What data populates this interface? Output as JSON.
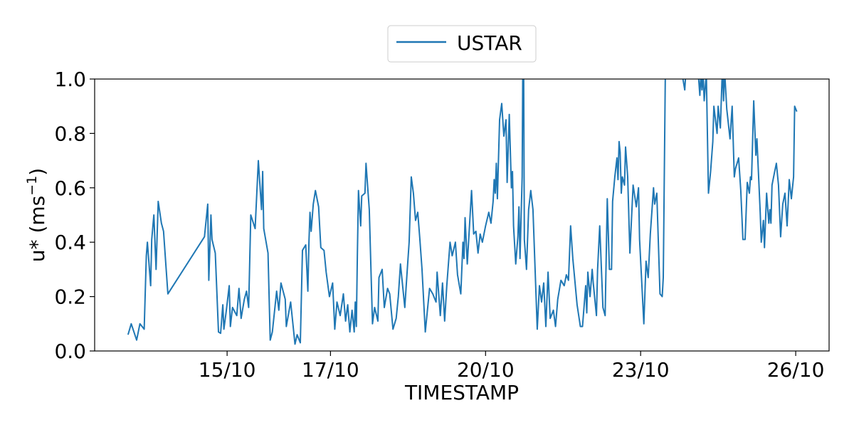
{
  "chart_data": {
    "type": "line",
    "title": "",
    "xlabel": "TIMESTAMP",
    "ylabel": "u* (ms",
    "ylabel_exponent": "−1",
    "ylabel_close": ")",
    "ylim": [
      0,
      1
    ],
    "xlim": [
      "12/10 10:30",
      "26/10 15:30"
    ],
    "yticks": [
      "0.0",
      "0.2",
      "0.4",
      "0.6",
      "0.8",
      "1.0"
    ],
    "xticks": [
      "15/10",
      "17/10",
      "20/10",
      "23/10",
      "26/10"
    ],
    "grid": false,
    "legend_placement": "top-center, outside",
    "series": [
      {
        "name": "USTAR",
        "color": "#1f77b4",
        "points": [
          [
            "13/10 02:00",
            0.06
          ],
          [
            "13/10 03:30",
            0.1
          ],
          [
            "13/10 06:00",
            0.04
          ],
          [
            "13/10 07:30",
            0.1
          ],
          [
            "13/10 09:30",
            0.08
          ],
          [
            "13/10 10:30",
            0.35
          ],
          [
            "13/10 11:00",
            0.4
          ],
          [
            "13/10 12:30",
            0.24
          ],
          [
            "13/10 13:00",
            0.41
          ],
          [
            "13/10 14:00",
            0.5
          ],
          [
            "13/10 15:00",
            0.3
          ],
          [
            "13/10 16:00",
            0.55
          ],
          [
            "13/10 17:30",
            0.47
          ],
          [
            "13/10 18:30",
            0.44
          ],
          [
            "13/10 20:30",
            0.21
          ],
          [
            "14/10 13:30",
            0.42
          ],
          [
            "14/10 15:00",
            0.54
          ],
          [
            "14/10 15:30",
            0.26
          ],
          [
            "14/10 16:30",
            0.5
          ],
          [
            "14/10 17:00",
            0.41
          ],
          [
            "14/10 18:30",
            0.36
          ],
          [
            "14/10 20:00",
            0.07
          ],
          [
            "14/10 21:00",
            0.065
          ],
          [
            "14/10 22:00",
            0.17
          ],
          [
            "14/10 22:30",
            0.08
          ],
          [
            "14/10 23:30",
            0.14
          ],
          [
            "15/10 01:00",
            0.24
          ],
          [
            "15/10 01:30",
            0.09
          ],
          [
            "15/10 02:30",
            0.16
          ],
          [
            "15/10 04:30",
            0.13
          ],
          [
            "15/10 05:30",
            0.23
          ],
          [
            "15/10 06:30",
            0.12
          ],
          [
            "15/10 08:00",
            0.19
          ],
          [
            "15/10 09:00",
            0.22
          ],
          [
            "15/10 10:00",
            0.16
          ],
          [
            "15/10 11:00",
            0.5
          ],
          [
            "15/10 13:00",
            0.45
          ],
          [
            "15/10 14:30",
            0.7
          ],
          [
            "15/10 16:00",
            0.52
          ],
          [
            "15/10 16:30",
            0.66
          ],
          [
            "15/10 17:00",
            0.45
          ],
          [
            "15/10 19:00",
            0.36
          ],
          [
            "15/10 20:00",
            0.04
          ],
          [
            "15/10 21:00",
            0.07
          ],
          [
            "15/10 23:00",
            0.22
          ],
          [
            "16/10 00:00",
            0.15
          ],
          [
            "16/10 01:00",
            0.25
          ],
          [
            "16/10 03:00",
            0.19
          ],
          [
            "16/10 03:30",
            0.09
          ],
          [
            "16/10 05:30",
            0.18
          ],
          [
            "16/10 07:30",
            0.025
          ],
          [
            "16/10 08:30",
            0.06
          ],
          [
            "16/10 10:00",
            0.03
          ],
          [
            "16/10 11:00",
            0.37
          ],
          [
            "16/10 12:30",
            0.39
          ],
          [
            "16/10 13:30",
            0.22
          ],
          [
            "16/10 14:00",
            0.4
          ],
          [
            "16/10 14:30",
            0.51
          ],
          [
            "16/10 15:00",
            0.44
          ],
          [
            "16/10 16:00",
            0.54
          ],
          [
            "16/10 17:00",
            0.59
          ],
          [
            "16/10 18:30",
            0.53
          ],
          [
            "16/10 19:30",
            0.38
          ],
          [
            "16/10 21:00",
            0.37
          ],
          [
            "16/10 22:00",
            0.29
          ],
          [
            "16/10 23:30",
            0.2
          ],
          [
            "17/10 01:00",
            0.25
          ],
          [
            "17/10 02:00",
            0.08
          ],
          [
            "17/10 03:00",
            0.18
          ],
          [
            "17/10 04:30",
            0.13
          ],
          [
            "17/10 06:00",
            0.21
          ],
          [
            "17/10 07:00",
            0.11
          ],
          [
            "17/10 08:00",
            0.17
          ],
          [
            "17/10 09:00",
            0.07
          ],
          [
            "17/10 10:00",
            0.15
          ],
          [
            "17/10 11:00",
            0.07
          ],
          [
            "17/10 11:30",
            0.18
          ],
          [
            "17/10 12:00",
            0.09
          ],
          [
            "17/10 12:30",
            0.36
          ],
          [
            "17/10 13:00",
            0.59
          ],
          [
            "17/10 14:00",
            0.46
          ],
          [
            "17/10 14:30",
            0.57
          ],
          [
            "17/10 16:00",
            0.58
          ],
          [
            "17/10 16:30",
            0.69
          ],
          [
            "17/10 18:00",
            0.52
          ],
          [
            "17/10 19:30",
            0.1
          ],
          [
            "17/10 20:30",
            0.16
          ],
          [
            "17/10 22:00",
            0.11
          ],
          [
            "17/10 22:30",
            0.27
          ],
          [
            "18/10 00:00",
            0.3
          ],
          [
            "18/10 01:00",
            0.16
          ],
          [
            "18/10 02:30",
            0.23
          ],
          [
            "18/10 03:30",
            0.21
          ],
          [
            "18/10 05:00",
            0.08
          ],
          [
            "18/10 06:30",
            0.12
          ],
          [
            "18/10 07:30",
            0.2
          ],
          [
            "18/10 08:30",
            0.32
          ],
          [
            "18/10 10:30",
            0.16
          ],
          [
            "18/10 11:30",
            0.28
          ],
          [
            "18/10 12:30",
            0.4
          ],
          [
            "18/10 13:30",
            0.64
          ],
          [
            "18/10 14:30",
            0.58
          ],
          [
            "18/10 15:30",
            0.48
          ],
          [
            "18/10 16:30",
            0.51
          ],
          [
            "18/10 17:30",
            0.41
          ],
          [
            "18/10 18:30",
            0.3
          ],
          [
            "18/10 20:00",
            0.07
          ],
          [
            "18/10 22:00",
            0.23
          ],
          [
            "18/10 23:30",
            0.21
          ],
          [
            "19/10 01:00",
            0.18
          ],
          [
            "19/10 01:30",
            0.29
          ],
          [
            "19/10 03:00",
            0.13
          ],
          [
            "19/10 04:00",
            0.25
          ],
          [
            "19/10 05:00",
            0.11
          ],
          [
            "19/10 06:00",
            0.24
          ],
          [
            "19/10 07:30",
            0.4
          ],
          [
            "19/10 08:30",
            0.35
          ],
          [
            "19/10 10:00",
            0.4
          ],
          [
            "19/10 11:00",
            0.28
          ],
          [
            "19/10 12:30",
            0.21
          ],
          [
            "19/10 13:30",
            0.4
          ],
          [
            "19/10 14:00",
            0.34
          ],
          [
            "19/10 14:30",
            0.49
          ],
          [
            "19/10 15:30",
            0.32
          ],
          [
            "19/10 17:30",
            0.59
          ],
          [
            "19/10 18:30",
            0.43
          ],
          [
            "19/10 19:30",
            0.44
          ],
          [
            "19/10 20:30",
            0.36
          ],
          [
            "19/10 21:30",
            0.43
          ],
          [
            "19/10 22:30",
            0.4
          ],
          [
            "20/10 00:00",
            0.46
          ],
          [
            "20/10 01:30",
            0.51
          ],
          [
            "20/10 02:30",
            0.47
          ],
          [
            "20/10 03:30",
            0.55
          ],
          [
            "20/10 04:00",
            0.63
          ],
          [
            "20/10 04:30",
            0.58
          ],
          [
            "20/10 05:00",
            0.69
          ],
          [
            "20/10 05:30",
            0.56
          ],
          [
            "20/10 06:30",
            0.85
          ],
          [
            "20/10 07:30",
            0.91
          ],
          [
            "20/10 08:30",
            0.79
          ],
          [
            "20/10 09:30",
            0.85
          ],
          [
            "20/10 10:00",
            0.62
          ],
          [
            "20/10 11:00",
            0.87
          ],
          [
            "20/10 12:00",
            0.6
          ],
          [
            "20/10 12:30",
            0.66
          ],
          [
            "20/10 13:00",
            0.46
          ],
          [
            "20/10 14:00",
            0.32
          ],
          [
            "20/10 15:00",
            0.42
          ],
          [
            "20/10 15:30",
            0.53
          ],
          [
            "20/10 16:00",
            0.34
          ],
          [
            "20/10 17:00",
            0.64
          ],
          [
            "20/10 17:30",
            1.35
          ],
          [
            "20/10 18:00",
            0.41
          ],
          [
            "20/10 19:00",
            0.3
          ],
          [
            "20/10 20:00",
            0.52
          ],
          [
            "20/10 21:00",
            0.59
          ],
          [
            "20/10 22:00",
            0.52
          ],
          [
            "21/10 00:00",
            0.08
          ],
          [
            "21/10 01:00",
            0.24
          ],
          [
            "21/10 02:00",
            0.18
          ],
          [
            "21/10 03:00",
            0.25
          ],
          [
            "21/10 04:00",
            0.09
          ],
          [
            "21/10 05:00",
            0.29
          ],
          [
            "21/10 06:00",
            0.12
          ],
          [
            "21/10 07:30",
            0.15
          ],
          [
            "21/10 08:30",
            0.09
          ],
          [
            "21/10 09:30",
            0.19
          ],
          [
            "21/10 11:00",
            0.26
          ],
          [
            "21/10 12:30",
            0.24
          ],
          [
            "21/10 13:30",
            0.28
          ],
          [
            "21/10 14:30",
            0.26
          ],
          [
            "21/10 15:30",
            0.46
          ],
          [
            "21/10 16:30",
            0.34
          ],
          [
            "21/10 18:30",
            0.17
          ],
          [
            "21/10 20:00",
            0.09
          ],
          [
            "21/10 21:00",
            0.09
          ],
          [
            "21/10 22:30",
            0.24
          ],
          [
            "21/10 23:00",
            0.14
          ],
          [
            "21/10 23:30",
            0.29
          ],
          [
            "22/10 00:30",
            0.2
          ],
          [
            "22/10 01:30",
            0.3
          ],
          [
            "22/10 02:00",
            0.25
          ],
          [
            "22/10 03:30",
            0.13
          ],
          [
            "22/10 04:00",
            0.3
          ],
          [
            "22/10 05:00",
            0.46
          ],
          [
            "22/10 06:30",
            0.16
          ],
          [
            "22/10 07:30",
            0.13
          ],
          [
            "22/10 08:30",
            0.56
          ],
          [
            "22/10 09:30",
            0.3
          ],
          [
            "22/10 10:30",
            0.3
          ],
          [
            "22/10 11:00",
            0.55
          ],
          [
            "22/10 12:00",
            0.64
          ],
          [
            "22/10 13:00",
            0.71
          ],
          [
            "22/10 13:30",
            0.63
          ],
          [
            "22/10 14:00",
            0.77
          ],
          [
            "22/10 14:30",
            0.73
          ],
          [
            "22/10 15:00",
            0.58
          ],
          [
            "22/10 15:30",
            0.64
          ],
          [
            "22/10 16:30",
            0.61
          ],
          [
            "22/10 17:00",
            0.75
          ],
          [
            "22/10 18:00",
            0.64
          ],
          [
            "22/10 19:00",
            0.36
          ],
          [
            "22/10 20:30",
            0.61
          ],
          [
            "22/10 22:00",
            0.53
          ],
          [
            "22/10 23:00",
            0.6
          ],
          [
            "22/10 23:30",
            0.41
          ],
          [
            "23/10 01:30",
            0.1
          ],
          [
            "23/10 02:30",
            0.33
          ],
          [
            "23/10 03:30",
            0.27
          ],
          [
            "23/10 04:30",
            0.43
          ],
          [
            "23/10 06:00",
            0.6
          ],
          [
            "23/10 06:30",
            0.54
          ],
          [
            "23/10 07:30",
            0.58
          ],
          [
            "23/10 09:00",
            0.21
          ],
          [
            "23/10 10:00",
            0.2
          ],
          [
            "23/10 10:30",
            0.27
          ],
          [
            "23/10 11:30",
            1.05
          ],
          [
            "23/10 13:30",
            1.2
          ],
          [
            "23/10 16:30",
            1.15
          ],
          [
            "23/10 20:30",
            0.96
          ],
          [
            "23/10 21:30",
            1.1
          ],
          [
            "24/10 01:00",
            1.2
          ],
          [
            "24/10 02:30",
            1.05
          ],
          [
            "24/10 03:30",
            0.94
          ],
          [
            "24/10 04:00",
            1.02
          ],
          [
            "24/10 04:30",
            0.96
          ],
          [
            "24/10 05:00",
            1.02
          ],
          [
            "24/10 05:30",
            0.92
          ],
          [
            "24/10 06:30",
            1.02
          ],
          [
            "24/10 07:30",
            0.58
          ],
          [
            "24/10 08:30",
            0.66
          ],
          [
            "24/10 09:30",
            0.77
          ],
          [
            "24/10 10:00",
            0.9
          ],
          [
            "24/10 11:30",
            0.8
          ],
          [
            "24/10 12:00",
            0.9
          ],
          [
            "24/10 13:00",
            0.82
          ],
          [
            "24/10 14:00",
            1.05
          ],
          [
            "24/10 14:30",
            0.92
          ],
          [
            "24/10 15:00",
            1.03
          ],
          [
            "24/10 16:00",
            0.89
          ],
          [
            "24/10 17:30",
            0.78
          ],
          [
            "24/10 18:30",
            0.9
          ],
          [
            "24/10 19:30",
            0.64
          ],
          [
            "24/10 20:00",
            0.67
          ],
          [
            "24/10 21:30",
            0.71
          ],
          [
            "24/10 22:30",
            0.59
          ],
          [
            "24/10 23:30",
            0.41
          ],
          [
            "25/10 00:30",
            0.41
          ],
          [
            "25/10 01:30",
            0.62
          ],
          [
            "25/10 02:30",
            0.58
          ],
          [
            "25/10 03:00",
            0.64
          ],
          [
            "25/10 03:30",
            0.63
          ],
          [
            "25/10 04:30",
            0.92
          ],
          [
            "25/10 05:30",
            0.72
          ],
          [
            "25/10 06:00",
            0.78
          ],
          [
            "25/10 07:30",
            0.51
          ],
          [
            "25/10 08:00",
            0.4
          ],
          [
            "25/10 09:00",
            0.48
          ],
          [
            "25/10 09:30",
            0.38
          ],
          [
            "25/10 10:30",
            0.58
          ],
          [
            "25/10 11:30",
            0.47
          ],
          [
            "25/10 12:00",
            0.52
          ],
          [
            "25/10 12:30",
            0.47
          ],
          [
            "25/10 13:00",
            0.61
          ],
          [
            "25/10 14:00",
            0.65
          ],
          [
            "25/10 15:00",
            0.69
          ],
          [
            "25/10 16:00",
            0.61
          ],
          [
            "25/10 17:00",
            0.42
          ],
          [
            "25/10 18:00",
            0.54
          ],
          [
            "25/10 19:00",
            0.58
          ],
          [
            "25/10 20:00",
            0.46
          ],
          [
            "25/10 21:00",
            0.63
          ],
          [
            "25/10 22:00",
            0.56
          ],
          [
            "25/10 23:00",
            0.64
          ],
          [
            "25/10 23:30",
            0.9
          ],
          [
            "26/10 00:30",
            0.88
          ]
        ]
      }
    ]
  }
}
